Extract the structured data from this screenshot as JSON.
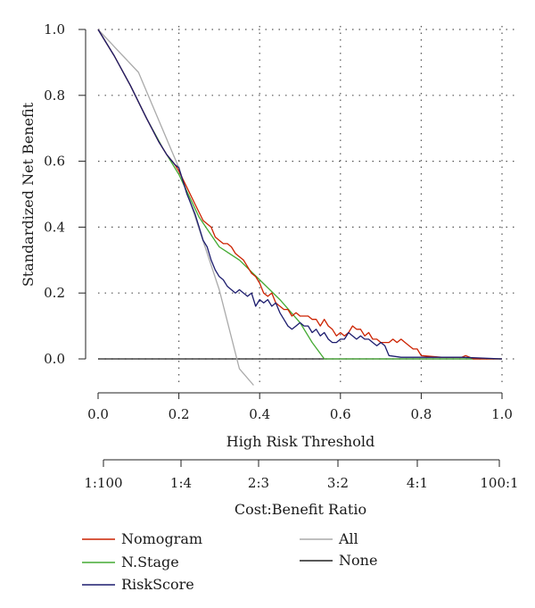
{
  "chart_data": {
    "type": "line",
    "title": "",
    "ylabel": "Standardized Net Benefit",
    "xlabel": "High Risk Threshold",
    "xlabel2": "Cost:Benefit Ratio",
    "xlim": [
      0.0,
      1.0
    ],
    "ylim": [
      -0.08,
      1.0
    ],
    "grid": true,
    "legend_position": "bottom",
    "y_ticks": [
      "0.0",
      "0.2",
      "0.4",
      "0.6",
      "0.8",
      "1.0"
    ],
    "x_ticks": [
      "0.0",
      "0.2",
      "0.4",
      "0.6",
      "0.8",
      "1.0"
    ],
    "x2_ticks": [
      "1:100",
      "1:4",
      "2:3",
      "3:2",
      "4:1",
      "100:1"
    ],
    "series": [
      {
        "name": "Nomogram",
        "color": "#cc2200",
        "x": [
          0.0,
          0.04,
          0.08,
          0.12,
          0.15,
          0.17,
          0.19,
          0.2,
          0.22,
          0.24,
          0.26,
          0.27,
          0.28,
          0.29,
          0.3,
          0.31,
          0.32,
          0.33,
          0.34,
          0.35,
          0.36,
          0.37,
          0.38,
          0.39,
          0.4,
          0.41,
          0.42,
          0.43,
          0.44,
          0.45,
          0.46,
          0.47,
          0.48,
          0.49,
          0.5,
          0.51,
          0.52,
          0.53,
          0.54,
          0.55,
          0.56,
          0.57,
          0.58,
          0.59,
          0.6,
          0.61,
          0.62,
          0.63,
          0.64,
          0.65,
          0.66,
          0.67,
          0.68,
          0.69,
          0.7,
          0.71,
          0.72,
          0.73,
          0.74,
          0.75,
          0.76,
          0.77,
          0.78,
          0.79,
          0.8,
          0.85,
          0.9,
          0.91,
          0.93,
          1.0
        ],
        "y": [
          1.0,
          0.92,
          0.83,
          0.73,
          0.66,
          0.62,
          0.59,
          0.57,
          0.52,
          0.47,
          0.42,
          0.41,
          0.4,
          0.37,
          0.36,
          0.35,
          0.35,
          0.34,
          0.32,
          0.31,
          0.3,
          0.28,
          0.26,
          0.25,
          0.23,
          0.2,
          0.19,
          0.2,
          0.17,
          0.16,
          0.15,
          0.15,
          0.13,
          0.14,
          0.13,
          0.13,
          0.13,
          0.12,
          0.12,
          0.1,
          0.12,
          0.1,
          0.09,
          0.07,
          0.08,
          0.07,
          0.08,
          0.1,
          0.09,
          0.09,
          0.07,
          0.08,
          0.06,
          0.06,
          0.05,
          0.05,
          0.05,
          0.06,
          0.05,
          0.06,
          0.05,
          0.04,
          0.03,
          0.03,
          0.01,
          0.005,
          0.005,
          0.01,
          0.0,
          0.0
        ]
      },
      {
        "name": "N.Stage",
        "color": "#44aa33",
        "x": [
          0.0,
          0.04,
          0.08,
          0.12,
          0.16,
          0.2,
          0.25,
          0.3,
          0.35,
          0.4,
          0.45,
          0.5,
          0.53,
          0.56,
          0.6,
          0.7,
          1.0
        ],
        "y": [
          1.0,
          0.92,
          0.83,
          0.73,
          0.64,
          0.56,
          0.43,
          0.34,
          0.3,
          0.24,
          0.18,
          0.11,
          0.05,
          0.0,
          0.0,
          0.0,
          0.0
        ]
      },
      {
        "name": "RiskScore",
        "color": "#1c1c6e",
        "x": [
          0.0,
          0.04,
          0.08,
          0.12,
          0.15,
          0.17,
          0.19,
          0.2,
          0.22,
          0.24,
          0.25,
          0.26,
          0.27,
          0.28,
          0.29,
          0.3,
          0.31,
          0.32,
          0.33,
          0.34,
          0.35,
          0.36,
          0.37,
          0.38,
          0.39,
          0.4,
          0.41,
          0.42,
          0.43,
          0.44,
          0.45,
          0.46,
          0.47,
          0.48,
          0.49,
          0.5,
          0.51,
          0.52,
          0.53,
          0.54,
          0.55,
          0.56,
          0.57,
          0.58,
          0.59,
          0.6,
          0.61,
          0.62,
          0.63,
          0.64,
          0.65,
          0.66,
          0.67,
          0.68,
          0.69,
          0.7,
          0.71,
          0.72,
          0.75,
          0.8,
          0.9,
          1.0
        ],
        "y": [
          1.0,
          0.92,
          0.83,
          0.73,
          0.66,
          0.62,
          0.59,
          0.58,
          0.5,
          0.44,
          0.4,
          0.36,
          0.34,
          0.3,
          0.27,
          0.25,
          0.24,
          0.22,
          0.21,
          0.2,
          0.21,
          0.2,
          0.19,
          0.2,
          0.16,
          0.18,
          0.17,
          0.18,
          0.16,
          0.17,
          0.14,
          0.12,
          0.1,
          0.09,
          0.1,
          0.11,
          0.1,
          0.1,
          0.08,
          0.09,
          0.07,
          0.08,
          0.06,
          0.05,
          0.05,
          0.06,
          0.06,
          0.08,
          0.07,
          0.06,
          0.07,
          0.06,
          0.06,
          0.05,
          0.04,
          0.05,
          0.04,
          0.01,
          0.005,
          0.005,
          0.005,
          0.0
        ]
      },
      {
        "name": "All",
        "color": "#aaaaaa",
        "x": [
          0.0,
          0.1,
          0.2,
          0.3,
          0.35,
          0.385
        ],
        "y": [
          1.0,
          0.87,
          0.58,
          0.21,
          -0.03,
          -0.08
        ]
      },
      {
        "name": "None",
        "color": "#222222",
        "x": [
          0.0,
          1.0
        ],
        "y": [
          0.0,
          0.0
        ]
      }
    ]
  }
}
